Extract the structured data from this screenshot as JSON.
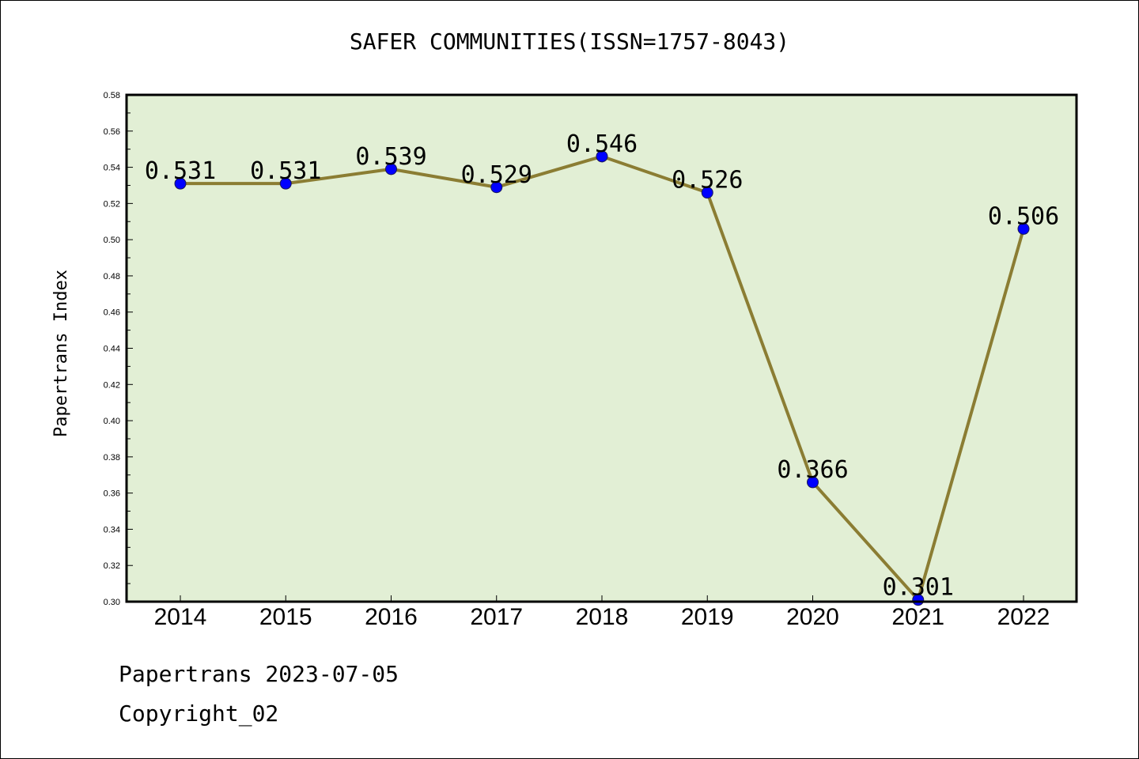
{
  "chart_data": {
    "type": "line",
    "title": "SAFER COMMUNITIES(ISSN=1757-8043)",
    "ylabel": "Papertrans Index",
    "xlabel": "",
    "categories": [
      "2014",
      "2015",
      "2016",
      "2017",
      "2018",
      "2019",
      "2020",
      "2021",
      "2022"
    ],
    "values": [
      0.531,
      0.531,
      0.539,
      0.529,
      0.546,
      0.526,
      0.366,
      0.301,
      0.506
    ],
    "data_labels": [
      "0.531",
      "0.531",
      "0.539",
      "0.529",
      "0.546",
      "0.526",
      "0.366",
      "0.301",
      "0.506"
    ],
    "ylim": [
      0.3,
      0.58
    ],
    "yticks": [
      "0.30",
      "0.32",
      "0.34",
      "0.36",
      "0.38",
      "0.40",
      "0.42",
      "0.44",
      "0.46",
      "0.48",
      "0.50",
      "0.52",
      "0.54",
      "0.56",
      "0.58"
    ],
    "grid": false,
    "legend": "none",
    "colors": {
      "line": "#8b7d33",
      "marker": "#0000ff",
      "plot_background": "#e2efd5"
    }
  },
  "footer": {
    "line1": "Papertrans 2023-07-05",
    "line2": "Copyright_02"
  }
}
